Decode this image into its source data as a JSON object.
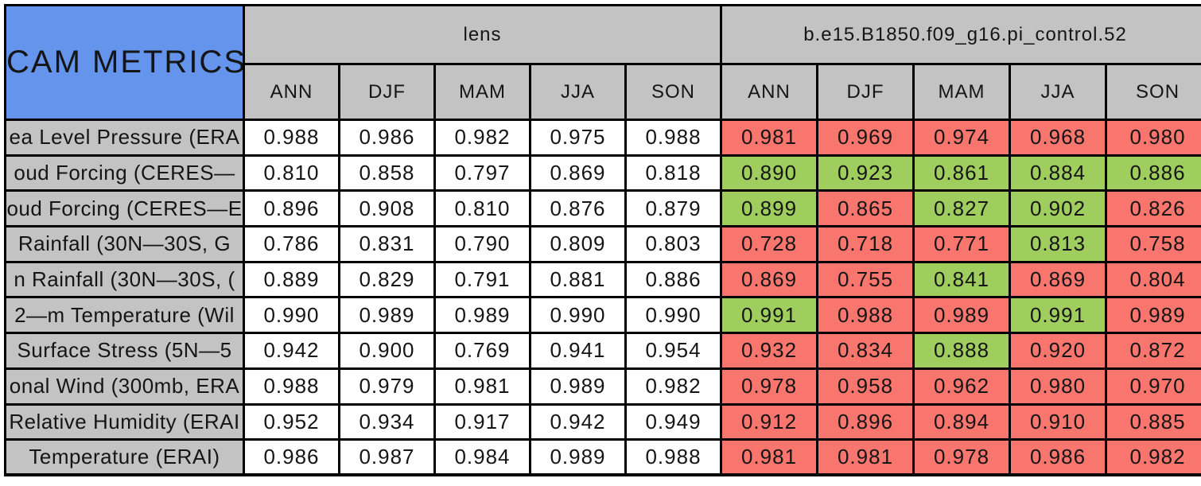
{
  "colors": {
    "header_blue": "#6494EC",
    "header_gray": "#C3C3C3",
    "fail_red": "#F9766E",
    "pass_green": "#A0CE5E",
    "border_black": "#000000",
    "lens_cell_white": "#FFFFFF"
  },
  "chart_data": {
    "type": "table",
    "title": "CAM METRICS",
    "groups": [
      {
        "label": "lens",
        "seasons": [
          "ANN",
          "DJF",
          "MAM",
          "JJA",
          "SON"
        ]
      },
      {
        "label": "b.e15.B1850.f09_g16.pi_control.52",
        "seasons": [
          "ANN",
          "DJF",
          "MAM",
          "JJA",
          "SON"
        ]
      }
    ],
    "rows": [
      {
        "label": "ea Level Pressure (ERA",
        "lens": [
          0.988,
          0.986,
          0.982,
          0.975,
          0.988
        ],
        "control": [
          0.981,
          0.969,
          0.974,
          0.968,
          0.98
        ],
        "control_colors": [
          "red",
          "red",
          "red",
          "red",
          "red"
        ]
      },
      {
        "label": "oud Forcing (CERES—",
        "lens": [
          0.81,
          0.858,
          0.797,
          0.869,
          0.818
        ],
        "control": [
          0.89,
          0.923,
          0.861,
          0.884,
          0.886
        ],
        "control_colors": [
          "green",
          "green",
          "green",
          "green",
          "green"
        ]
      },
      {
        "label": "oud Forcing (CERES—E",
        "lens": [
          0.896,
          0.908,
          0.81,
          0.876,
          0.879
        ],
        "control": [
          0.899,
          0.865,
          0.827,
          0.902,
          0.826
        ],
        "control_colors": [
          "green",
          "red",
          "green",
          "green",
          "red"
        ]
      },
      {
        "label": "Rainfall (30N—30S, G",
        "lens": [
          0.786,
          0.831,
          0.79,
          0.809,
          0.803
        ],
        "control": [
          0.728,
          0.718,
          0.771,
          0.813,
          0.758
        ],
        "control_colors": [
          "red",
          "red",
          "red",
          "green",
          "red"
        ]
      },
      {
        "label": "n Rainfall (30N—30S, (",
        "lens": [
          0.889,
          0.829,
          0.791,
          0.881,
          0.886
        ],
        "control": [
          0.869,
          0.755,
          0.841,
          0.869,
          0.804
        ],
        "control_colors": [
          "red",
          "red",
          "green",
          "red",
          "red"
        ]
      },
      {
        "label": "2—m Temperature (Wil",
        "lens": [
          0.99,
          0.989,
          0.989,
          0.99,
          0.99
        ],
        "control": [
          0.991,
          0.988,
          0.989,
          0.991,
          0.989
        ],
        "control_colors": [
          "green",
          "red",
          "red",
          "green",
          "red"
        ]
      },
      {
        "label": "Surface Stress (5N—5",
        "lens": [
          0.942,
          0.9,
          0.769,
          0.941,
          0.954
        ],
        "control": [
          0.932,
          0.834,
          0.888,
          0.92,
          0.872
        ],
        "control_colors": [
          "red",
          "red",
          "green",
          "red",
          "red"
        ]
      },
      {
        "label": "onal Wind (300mb, ERA",
        "lens": [
          0.988,
          0.979,
          0.981,
          0.989,
          0.982
        ],
        "control": [
          0.978,
          0.958,
          0.962,
          0.98,
          0.97
        ],
        "control_colors": [
          "red",
          "red",
          "red",
          "red",
          "red"
        ]
      },
      {
        "label": "Relative Humidity (ERAI",
        "lens": [
          0.952,
          0.934,
          0.917,
          0.942,
          0.949
        ],
        "control": [
          0.912,
          0.896,
          0.894,
          0.91,
          0.885
        ],
        "control_colors": [
          "red",
          "red",
          "red",
          "red",
          "red"
        ]
      },
      {
        "label": "Temperature (ERAI)",
        "lens": [
          0.986,
          0.987,
          0.984,
          0.989,
          0.988
        ],
        "control": [
          0.981,
          0.981,
          0.978,
          0.986,
          0.982
        ],
        "control_colors": [
          "red",
          "red",
          "red",
          "red",
          "red"
        ]
      }
    ]
  }
}
